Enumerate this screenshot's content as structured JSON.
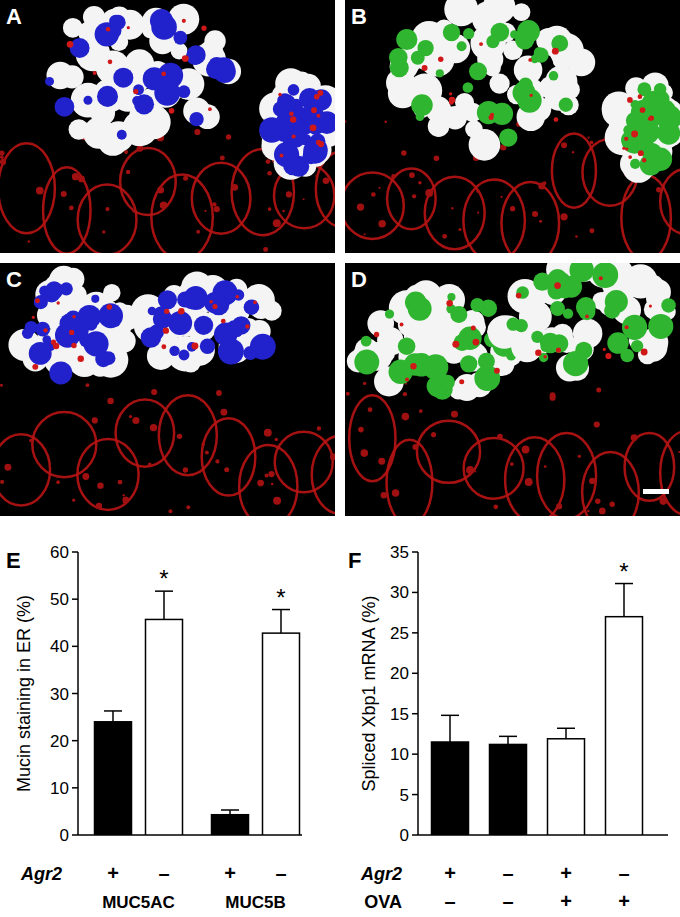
{
  "panels": [
    "A",
    "B",
    "C",
    "D"
  ],
  "chart_data": [
    {
      "type": "bar",
      "panel": "E",
      "ylabel": "Mucin staining in ER (%)",
      "categories": [
        "+",
        "–",
        "+",
        "–"
      ],
      "row_label": "Agr2",
      "group_labels": [
        "MUC5AC",
        "MUC5B"
      ],
      "values": [
        24,
        45.7,
        4.3,
        42.8
      ],
      "errors": [
        2.3,
        6,
        1,
        5
      ],
      "colors": [
        "#000000",
        "#ffffff",
        "#000000",
        "#ffffff"
      ],
      "annotations": [
        {
          "index": 1,
          "text": "*"
        },
        {
          "index": 3,
          "text": "*"
        }
      ],
      "ylim": [
        0,
        60
      ],
      "yticks": [
        0,
        10,
        20,
        30,
        40,
        50,
        60
      ]
    },
    {
      "type": "bar",
      "panel": "F",
      "ylabel": "Spliced Xbp1 mRNA (%)",
      "categories": [
        "+",
        "–",
        "+",
        "–"
      ],
      "row_label": "Agr2",
      "categories2": [
        "–",
        "–",
        "+",
        "+"
      ],
      "row_label2": "OVA",
      "values": [
        11.5,
        11.2,
        11.9,
        27
      ],
      "errors": [
        3.3,
        1,
        1.3,
        4.1
      ],
      "colors": [
        "#000000",
        "#000000",
        "#ffffff",
        "#ffffff"
      ],
      "annotations": [
        {
          "index": 3,
          "text": "*"
        }
      ],
      "ylim": [
        0,
        35
      ],
      "yticks": [
        0,
        5,
        10,
        15,
        20,
        25,
        30,
        35
      ]
    }
  ]
}
